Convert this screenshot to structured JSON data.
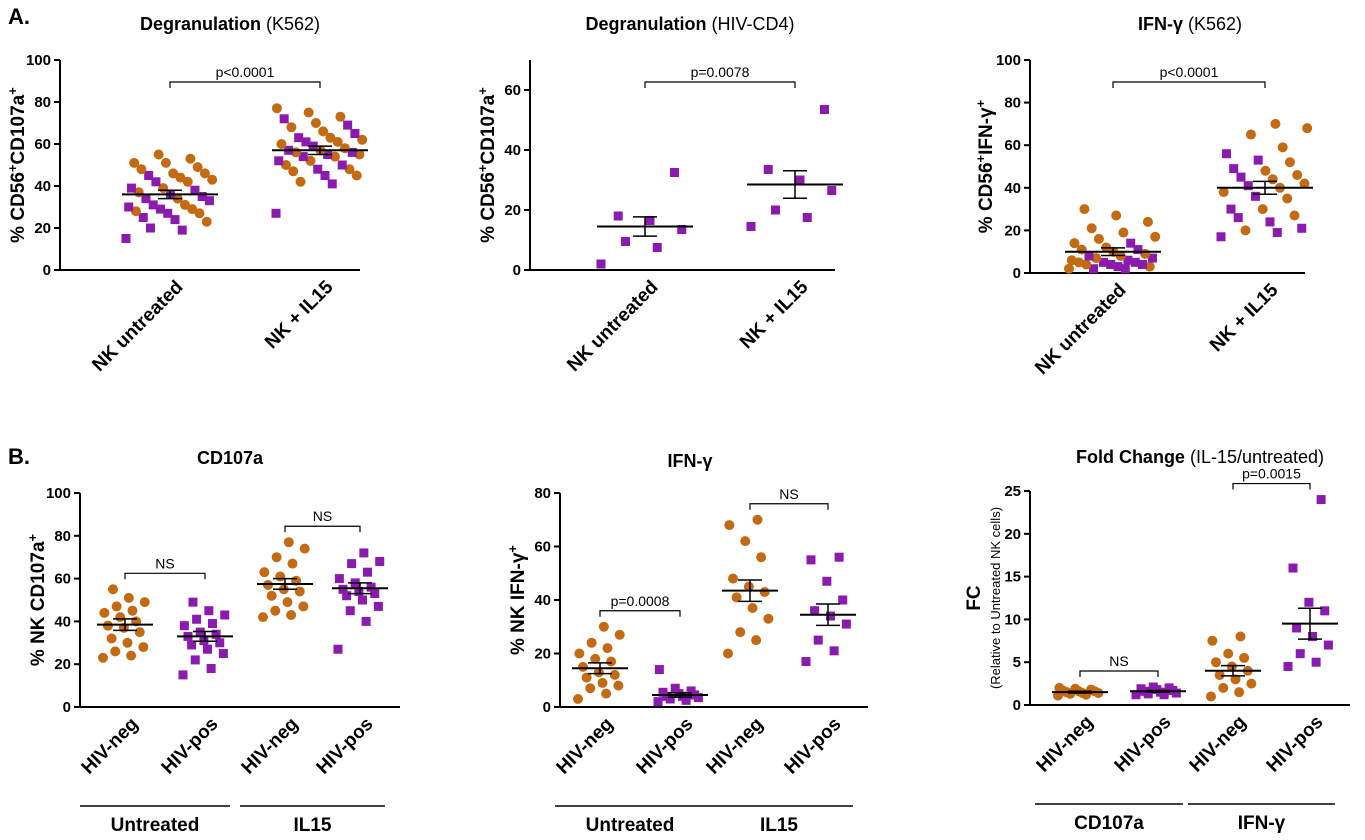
{
  "colors": {
    "hiv_neg": "#C46A12",
    "hiv_pos": "#8B1AAE"
  },
  "labels": {
    "panel_a": "A.",
    "panel_b": "B."
  },
  "chart_data": [
    {
      "id": "a1",
      "type": "scatter",
      "title_bold": "Degranulation",
      "title_rest": " (K562)",
      "ylabel": "% CD56+CD107a+",
      "ylim": [
        0,
        100
      ],
      "yticks": [
        0,
        20,
        40,
        60,
        80,
        100
      ],
      "categories": [
        "NK untreated",
        "NK + IL15"
      ],
      "groups": [],
      "significance": [
        {
          "from": 0,
          "to": 1,
          "label": "p<0.0001"
        }
      ],
      "series": [
        {
          "category": 0,
          "mean": 36,
          "sem": 2,
          "circles": [
            55,
            53,
            51,
            51,
            49,
            48,
            46,
            46,
            44,
            43,
            42,
            39,
            37,
            34,
            31,
            29,
            28,
            27,
            23
          ],
          "squares": [
            45,
            42,
            39,
            38,
            36,
            35,
            34,
            33,
            31,
            30,
            29,
            27,
            25,
            24,
            20,
            19,
            15
          ]
        },
        {
          "category": 1,
          "mean": 57,
          "sem": 2,
          "circles": [
            77,
            75,
            73,
            70,
            68,
            66,
            63,
            62,
            61,
            60,
            58,
            57,
            56,
            55,
            54,
            52,
            50,
            48,
            47,
            45,
            42
          ],
          "squares": [
            72,
            69,
            65,
            63,
            61,
            59,
            57,
            56,
            55,
            54,
            52,
            50,
            48,
            45,
            41,
            27
          ]
        }
      ]
    },
    {
      "id": "a2",
      "type": "scatter",
      "title_bold": "Degranulation",
      "title_rest": " (HIV-CD4)",
      "ylabel": "% CD56+CD107a+",
      "ylim": [
        0,
        70
      ],
      "yticks": [
        0,
        20,
        40,
        60
      ],
      "categories": [
        "NK untreated",
        "NK + IL15"
      ],
      "groups": [],
      "significance": [
        {
          "from": 0,
          "to": 1,
          "label": "p=0.0078"
        }
      ],
      "series": [
        {
          "category": 0,
          "mean": 14.5,
          "sem": 3.2,
          "circles": [],
          "squares": [
            32.5,
            18,
            16.5,
            13.5,
            9.5,
            7.5,
            2
          ]
        },
        {
          "category": 1,
          "mean": 28.5,
          "sem": 4.6,
          "circles": [],
          "squares": [
            53.5,
            33.5,
            30,
            26.5,
            20,
            17.5,
            14.5
          ]
        }
      ]
    },
    {
      "id": "a3",
      "type": "scatter",
      "title_bold": "IFN-γ",
      "title_rest": " (K562)",
      "ylabel": "% CD56+IFN-γ+",
      "ylim": [
        0,
        100
      ],
      "yticks": [
        0,
        20,
        40,
        60,
        80,
        100
      ],
      "categories": [
        "NK untreated",
        "NK + IL15"
      ],
      "groups": [],
      "significance": [
        {
          "from": 0,
          "to": 1,
          "label": "p<0.0001"
        }
      ],
      "series": [
        {
          "category": 0,
          "mean": 10,
          "sem": 1.8,
          "circles": [
            30,
            27,
            24,
            21,
            19,
            17,
            16,
            14,
            12,
            11,
            10,
            9,
            8,
            7,
            6,
            5,
            4,
            3,
            2
          ],
          "squares": [
            14,
            11,
            8,
            7,
            6,
            5,
            5,
            4,
            4,
            3,
            2,
            2
          ]
        },
        {
          "category": 1,
          "mean": 40,
          "sem": 3,
          "circles": [
            70,
            68,
            65,
            59,
            52,
            48,
            46,
            44,
            42,
            40,
            38,
            35,
            30,
            27,
            20
          ],
          "squares": [
            56,
            53,
            49,
            45,
            41,
            36,
            30,
            26,
            24,
            21,
            19,
            17
          ]
        }
      ]
    },
    {
      "id": "b1",
      "type": "scatter",
      "title_bold": "CD107a",
      "title_rest": "",
      "ylabel": "% NK CD107a+",
      "ylim": [
        0,
        100
      ],
      "yticks": [
        0,
        20,
        40,
        60,
        80,
        100
      ],
      "categories": [
        "HIV-neg",
        "HIV-pos",
        "HIV-neg",
        "HIV-pos"
      ],
      "groups": [
        {
          "label": "Untreated",
          "from": 0,
          "to": 1
        },
        {
          "label": "IL15",
          "from": 2,
          "to": 3
        }
      ],
      "significance": [
        {
          "from": 0,
          "to": 1,
          "label": "NS"
        },
        {
          "from": 2,
          "to": 3,
          "label": "NS"
        }
      ],
      "series": [
        {
          "category": 0,
          "mean": 38.5,
          "sem": 2.7,
          "circles": [
            55,
            51,
            49,
            47,
            45,
            44,
            42,
            40,
            38,
            37,
            35,
            32,
            30,
            28,
            26,
            24,
            23
          ],
          "squares": []
        },
        {
          "category": 1,
          "mean": 33,
          "sem": 2.3,
          "circles": [],
          "squares": [
            49,
            45,
            43,
            41,
            39,
            38,
            35,
            34,
            33,
            31,
            30,
            29,
            27,
            25,
            22,
            18,
            15
          ]
        },
        {
          "category": 2,
          "mean": 57.5,
          "sem": 2.5,
          "circles": [
            77,
            74,
            70,
            67,
            63,
            61,
            59,
            57,
            55,
            54,
            52,
            49,
            47,
            45,
            43,
            42
          ],
          "squares": []
        },
        {
          "category": 3,
          "mean": 55.5,
          "sem": 2.5,
          "circles": [],
          "squares": [
            72,
            68,
            67,
            63,
            60,
            58,
            56,
            55,
            54,
            53,
            52,
            50,
            47,
            45,
            40,
            27
          ]
        }
      ]
    },
    {
      "id": "b2",
      "type": "scatter",
      "title_bold": "IFN-γ",
      "title_rest": "",
      "ylabel": "% NK IFN-γ+",
      "ylim": [
        0,
        80
      ],
      "yticks": [
        0,
        20,
        40,
        60,
        80
      ],
      "categories": [
        "HIV-neg",
        "HIV-pos",
        "HIV-neg",
        "HIV-pos"
      ],
      "groups": [
        {
          "label": "Untreated",
          "from": 0,
          "to": 1
        },
        {
          "label": "IL15",
          "from": 2,
          "to": 3
        }
      ],
      "significance": [
        {
          "from": 0,
          "to": 1,
          "label": "p=0.0008"
        },
        {
          "from": 2,
          "to": 3,
          "label": "NS"
        }
      ],
      "series": [
        {
          "category": 0,
          "mean": 14.5,
          "sem": 2,
          "circles": [
            30,
            27,
            24,
            22,
            20,
            18,
            17,
            15,
            13,
            12,
            11,
            9,
            8,
            7,
            5,
            3
          ],
          "squares": []
        },
        {
          "category": 1,
          "mean": 4.5,
          "sem": 0.8,
          "circles": [],
          "squares": [
            14,
            7,
            6,
            5.5,
            5,
            4.5,
            4,
            4,
            3.5,
            3,
            2.5,
            2
          ]
        },
        {
          "category": 2,
          "mean": 43.5,
          "sem": 4,
          "circles": [
            70,
            68,
            62,
            56,
            48,
            45,
            43,
            41,
            37,
            33,
            28,
            25,
            20
          ],
          "squares": []
        },
        {
          "category": 3,
          "mean": 34.5,
          "sem": 4,
          "circles": [],
          "squares": [
            56,
            55,
            47,
            40,
            36,
            34,
            31,
            25,
            21,
            17
          ]
        }
      ]
    },
    {
      "id": "b3",
      "type": "scatter",
      "title_bold": "Fold Change",
      "title_rest": " (IL-15/untreated)",
      "ylabel": "FC",
      "ylabel_sub": "(Relative to Untreated NK cells)",
      "ylim": [
        0,
        25
      ],
      "yticks": [
        0,
        5,
        10,
        15,
        20,
        25
      ],
      "categories": [
        "HIV-neg",
        "HIV-pos",
        "HIV-neg",
        "HIV-pos"
      ],
      "groups": [
        {
          "label": "CD107a",
          "from": 0,
          "to": 1
        },
        {
          "label": "IFN-γ",
          "from": 2,
          "to": 3
        }
      ],
      "significance": [
        {
          "from": 0,
          "to": 1,
          "label": "NS"
        },
        {
          "from": 2,
          "to": 3,
          "label": "p=0.0015"
        }
      ],
      "series": [
        {
          "category": 0,
          "mean": 1.5,
          "sem": 0.1,
          "circles": [
            2,
            1.9,
            1.8,
            1.7,
            1.6,
            1.6,
            1.5,
            1.4,
            1.4,
            1.3,
            1.2,
            1.1
          ],
          "squares": []
        },
        {
          "category": 1,
          "mean": 1.6,
          "sem": 0.1,
          "circles": [],
          "squares": [
            2.1,
            2,
            1.9,
            1.8,
            1.7,
            1.6,
            1.5,
            1.4,
            1.3,
            1.2,
            1.2
          ]
        },
        {
          "category": 2,
          "mean": 4,
          "sem": 0.6,
          "circles": [
            8,
            7.5,
            6,
            5.5,
            5,
            4.5,
            4,
            3.5,
            3,
            2.5,
            2,
            1.5,
            1
          ],
          "squares": []
        },
        {
          "category": 3,
          "mean": 9.5,
          "sem": 1.8,
          "circles": [],
          "squares": [
            24,
            16,
            12,
            11,
            9,
            8,
            7,
            6,
            5,
            4.5
          ]
        }
      ]
    }
  ]
}
